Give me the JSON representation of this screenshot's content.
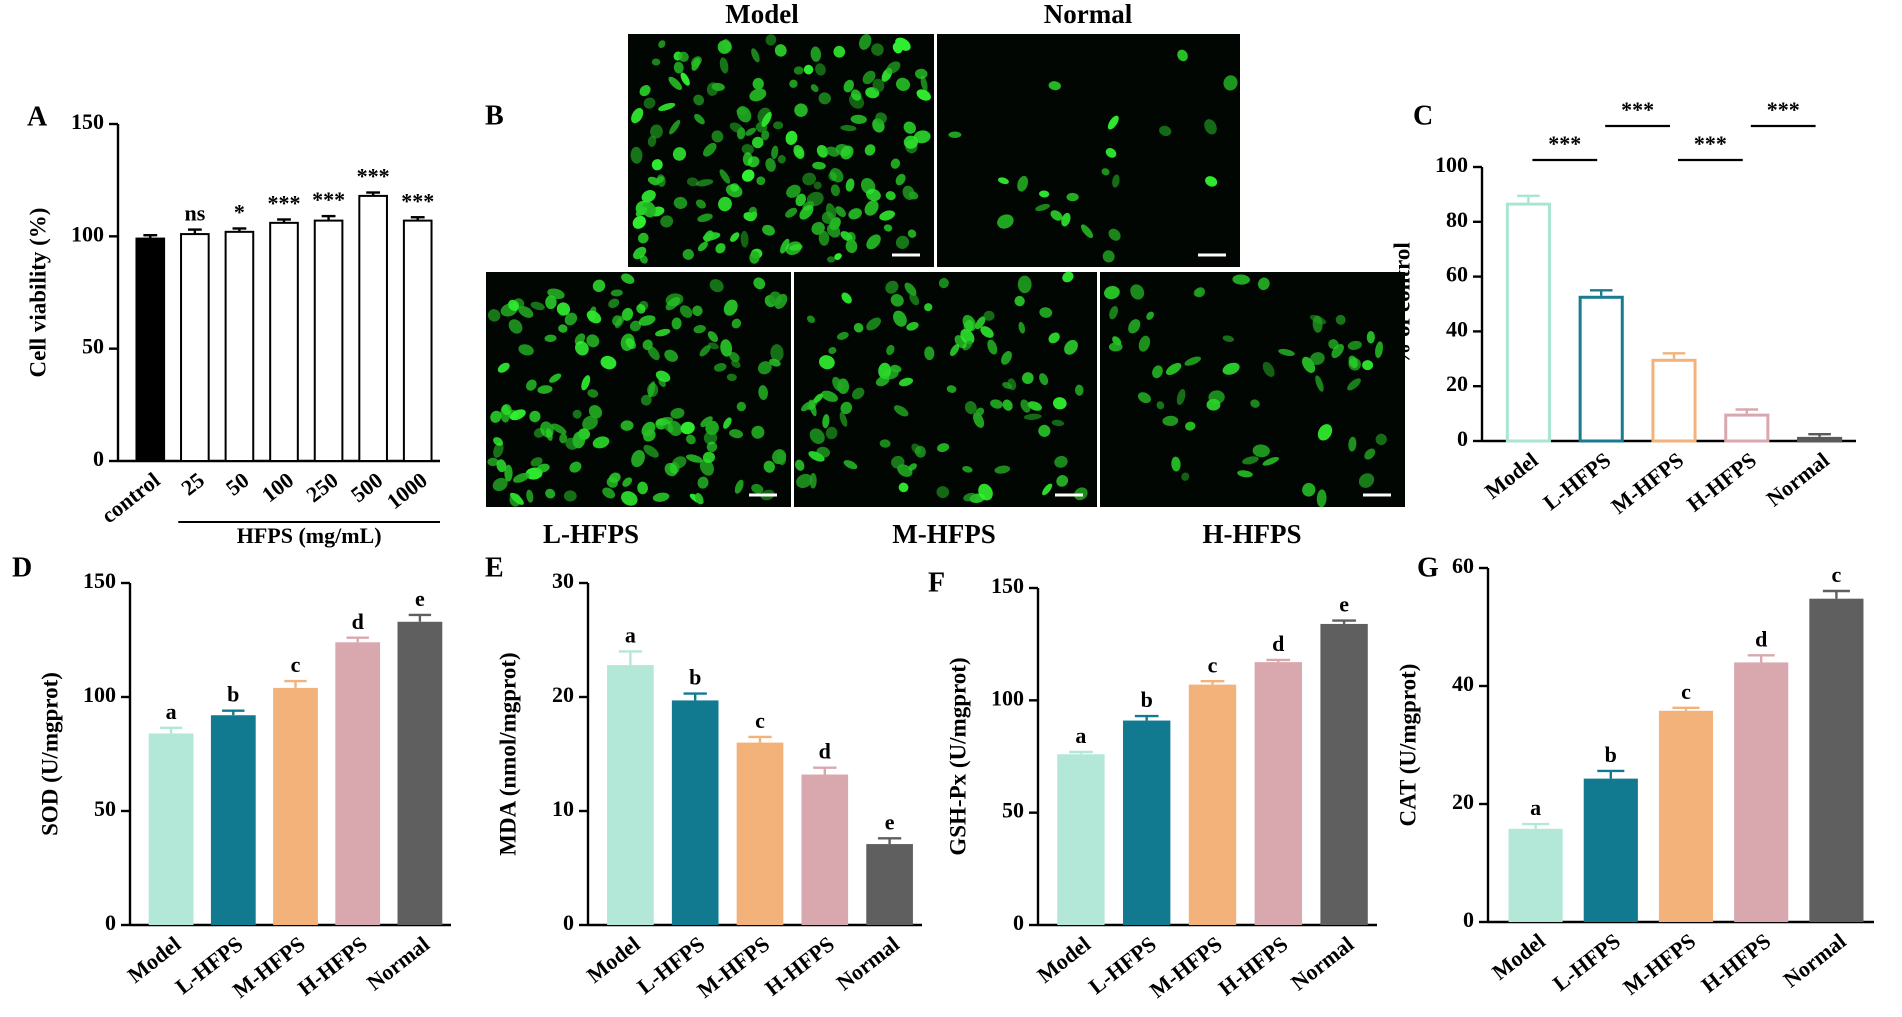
{
  "chart_data": [
    {
      "type": "bar",
      "panel": "A",
      "ylabel": "Cell viability (%)",
      "xlabel": "HFPS (mg/mL)",
      "categories": [
        "control",
        "25",
        "50",
        "100",
        "250",
        "500",
        "1000"
      ],
      "values": [
        99,
        101,
        102,
        106,
        107,
        118,
        107
      ],
      "errors": [
        1.5,
        2,
        1.5,
        1.5,
        2,
        1.5,
        1.5
      ],
      "annotations": [
        null,
        "ns",
        "*",
        "***",
        "***",
        "***",
        "***"
      ],
      "colors": [
        "#000000",
        "#ffffff",
        "#ffffff",
        "#ffffff",
        "#ffffff",
        "#ffffff",
        "#ffffff"
      ],
      "edgecolor": "#000000",
      "ylim": [
        0,
        150
      ],
      "yticks": [
        0,
        50,
        100,
        150
      ]
    },
    {
      "type": "bar",
      "panel": "C",
      "ylabel": "% of control",
      "hollow": true,
      "categories": [
        "Model",
        "L-HFPS",
        "M-HFPS",
        "H-HFPS",
        "Normal"
      ],
      "values": [
        87,
        53,
        30,
        10,
        1.5
      ],
      "errors": [
        2.5,
        2,
        2,
        1.5,
        1
      ],
      "colors": [
        "#a8e6d2",
        "#1a7a90",
        "#f2b27a",
        "#d9a8ae",
        "#5a5a5a"
      ],
      "significance": [
        "***",
        "***",
        "***",
        "***"
      ],
      "ylim": [
        0,
        100
      ],
      "yticks": [
        0,
        20,
        40,
        60,
        80,
        100
      ]
    },
    {
      "type": "bar",
      "panel": "D",
      "ylabel": "SOD (U/mgprot)",
      "categories": [
        "Model",
        "L-HFPS",
        "M-HFPS",
        "H-HFPS",
        "Normal"
      ],
      "values": [
        84,
        92,
        104,
        124,
        133
      ],
      "errors": [
        2.5,
        2,
        3,
        2,
        3
      ],
      "annotations": [
        "a",
        "b",
        "c",
        "d",
        "e"
      ],
      "colors": [
        "#b3e8d8",
        "#117a91",
        "#f2b27a",
        "#d9a8ae",
        "#5f5f5f"
      ],
      "ylim": [
        0,
        150
      ],
      "yticks": [
        0,
        50,
        100,
        150
      ]
    },
    {
      "type": "bar",
      "panel": "E",
      "ylabel": "MDA (nmol/mgprot)",
      "categories": [
        "Model",
        "L-HFPS",
        "M-HFPS",
        "H-HFPS",
        "Normal"
      ],
      "values": [
        22.8,
        19.7,
        16,
        13.2,
        7.1
      ],
      "errors": [
        1.2,
        0.6,
        0.5,
        0.6,
        0.5
      ],
      "annotations": [
        "a",
        "b",
        "c",
        "d",
        "e"
      ],
      "colors": [
        "#b3e8d8",
        "#117a91",
        "#f2b27a",
        "#d9a8ae",
        "#5f5f5f"
      ],
      "ylim": [
        0,
        30
      ],
      "yticks": [
        0,
        10,
        20,
        30
      ]
    },
    {
      "type": "bar",
      "panel": "F",
      "ylabel": "GSH-Px (U/mgprot)",
      "categories": [
        "Model",
        "L-HFPS",
        "M-HFPS",
        "H-HFPS",
        "Normal"
      ],
      "values": [
        76,
        91,
        107,
        117,
        134
      ],
      "errors": [
        1,
        2,
        1.5,
        1,
        1.5
      ],
      "annotations": [
        "a",
        "b",
        "c",
        "d",
        "e"
      ],
      "colors": [
        "#b3e8d8",
        "#117a91",
        "#f2b27a",
        "#d9a8ae",
        "#5f5f5f"
      ],
      "ylim": [
        0,
        150
      ],
      "yticks": [
        0,
        50,
        100,
        150
      ]
    },
    {
      "type": "bar",
      "panel": "G",
      "ylabel": "CAT (U/mgprot)",
      "categories": [
        "Model",
        "L-HFPS",
        "M-HFPS",
        "H-HFPS",
        "Normal"
      ],
      "values": [
        15.8,
        24.3,
        35.8,
        44,
        54.8
      ],
      "errors": [
        0.8,
        1.3,
        0.5,
        1.2,
        1.3
      ],
      "annotations": [
        "a",
        "b",
        "c",
        "d",
        "c"
      ],
      "colors": [
        "#b3e8d8",
        "#117a91",
        "#f2b27a",
        "#d9a8ae",
        "#5f5f5f"
      ],
      "ylim": [
        0,
        60
      ],
      "yticks": [
        0,
        20,
        40,
        60
      ]
    }
  ],
  "image_panel": {
    "panel": "B",
    "images": [
      "Model",
      "Normal",
      "L-HFPS",
      "M-HFPS",
      "H-HFPS"
    ]
  }
}
